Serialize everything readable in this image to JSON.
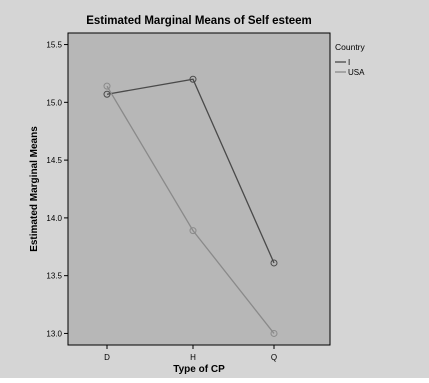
{
  "chart_data": {
    "type": "line",
    "title": "Estimated Marginal Means of Self esteem",
    "xlabel": "Type of CP",
    "ylabel": "Estimated Marginal Means",
    "categories": [
      "D",
      "H",
      "Q"
    ],
    "ylim": [
      12.9,
      15.6
    ],
    "yticks": [
      13.0,
      13.5,
      14.0,
      14.5,
      15.0,
      15.5
    ],
    "ytick_labels": [
      "13.0",
      "13.5",
      "14.0",
      "14.5",
      "15.0",
      "15.5"
    ],
    "grid": false,
    "legend": {
      "title": "Country",
      "placement": "right"
    },
    "series": [
      {
        "name": "I",
        "values": [
          15.07,
          15.2,
          13.61
        ],
        "color": "#4a4a4a"
      },
      {
        "name": "USA",
        "values": [
          15.14,
          13.89,
          13.0
        ],
        "color": "#8a8a8a"
      }
    ],
    "colors": {
      "outer_background": "#d5d5d5",
      "plot_background": "#b7b7b7",
      "axis": "#000000"
    }
  }
}
